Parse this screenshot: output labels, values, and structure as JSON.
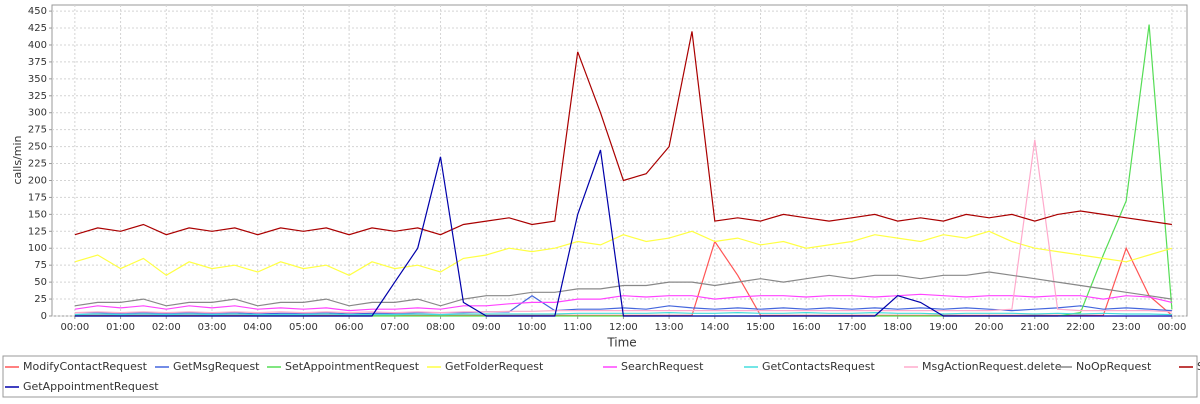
{
  "chart_data": {
    "type": "line",
    "ylabel": "calls/min",
    "xlabel": "Time",
    "xlim": [
      -0.5,
      24.33
    ],
    "ylim": [
      0,
      459
    ],
    "xticks": [
      {
        "value": 0,
        "label": "00:00"
      },
      {
        "value": 1,
        "label": "01:00"
      },
      {
        "value": 2,
        "label": "02:00"
      },
      {
        "value": 3,
        "label": "03:00"
      },
      {
        "value": 4,
        "label": "04:00"
      },
      {
        "value": 5,
        "label": "05:00"
      },
      {
        "value": 6,
        "label": "06:00"
      },
      {
        "value": 7,
        "label": "07:00"
      },
      {
        "value": 8,
        "label": "08:00"
      },
      {
        "value": 9,
        "label": "09:00"
      },
      {
        "value": 10,
        "label": "10:00"
      },
      {
        "value": 11,
        "label": "11:00"
      },
      {
        "value": 12,
        "label": "12:00"
      },
      {
        "value": 13,
        "label": "13:00"
      },
      {
        "value": 14,
        "label": "14:00"
      },
      {
        "value": 15,
        "label": "15:00"
      },
      {
        "value": 16,
        "label": "16:00"
      },
      {
        "value": 17,
        "label": "17:00"
      },
      {
        "value": 18,
        "label": "18:00"
      },
      {
        "value": 19,
        "label": "19:00"
      },
      {
        "value": 20,
        "label": "20:00"
      },
      {
        "value": 21,
        "label": "21:00"
      },
      {
        "value": 22,
        "label": "22:00"
      },
      {
        "value": 23,
        "label": "23:00"
      },
      {
        "value": 24,
        "label": "00:00"
      }
    ],
    "yticks": [
      0,
      25,
      50,
      75,
      100,
      125,
      150,
      175,
      200,
      225,
      250,
      275,
      300,
      325,
      350,
      375,
      400,
      425,
      450
    ],
    "grid": true,
    "x": [
      0,
      0.5,
      1,
      1.5,
      2,
      2.5,
      3,
      3.5,
      4,
      4.5,
      5,
      5.5,
      6,
      6.5,
      7,
      7.5,
      8,
      8.5,
      9,
      9.5,
      10,
      10.5,
      11,
      11.5,
      12,
      12.5,
      13,
      13.5,
      14,
      14.5,
      15,
      15.5,
      16,
      16.5,
      17,
      17.5,
      18,
      18.5,
      19,
      19.5,
      20,
      20.5,
      21,
      21.5,
      22,
      22.5,
      23,
      23.5,
      24
    ],
    "series": [
      {
        "name": "ModifyContactRequest",
        "color": "#ff5555",
        "values": [
          1,
          1,
          1,
          1,
          1,
          1,
          1,
          1,
          1,
          1,
          1,
          1,
          1,
          1,
          1,
          1,
          1,
          1,
          1,
          1,
          1,
          1,
          1,
          1,
          1,
          1,
          1,
          1,
          110,
          60,
          1,
          1,
          1,
          1,
          1,
          1,
          1,
          1,
          1,
          1,
          1,
          1,
          1,
          1,
          1,
          1,
          100,
          30,
          1
        ]
      },
      {
        "name": "GetMsgRequest",
        "color": "#4466dd",
        "values": [
          5,
          5,
          4,
          5,
          4,
          5,
          4,
          5,
          3,
          4,
          4,
          5,
          3,
          4,
          4,
          5,
          5,
          5,
          6,
          6,
          30,
          8,
          10,
          10,
          12,
          10,
          15,
          12,
          10,
          12,
          10,
          12,
          10,
          12,
          10,
          12,
          10,
          12,
          10,
          12,
          10,
          8,
          10,
          12,
          15,
          10,
          12,
          10,
          8
        ]
      },
      {
        "name": "SetAppointmentRequest",
        "color": "#55dd55",
        "values": [
          0,
          0,
          0,
          0,
          0,
          0,
          0,
          0,
          0,
          0,
          0,
          0,
          0,
          0,
          0,
          0,
          0,
          0,
          0,
          0,
          0,
          0,
          0,
          0,
          0,
          0,
          0,
          0,
          0,
          0,
          0,
          0,
          0,
          0,
          0,
          0,
          0,
          0,
          0,
          0,
          0,
          0,
          0,
          0,
          5,
          90,
          170,
          430,
          10
        ]
      },
      {
        "name": "GetFolderRequest",
        "color": "#ffff44",
        "values": [
          80,
          90,
          70,
          85,
          60,
          80,
          70,
          75,
          65,
          80,
          70,
          75,
          60,
          80,
          70,
          75,
          65,
          85,
          90,
          100,
          95,
          100,
          110,
          105,
          120,
          110,
          115,
          125,
          110,
          115,
          105,
          110,
          100,
          105,
          110,
          120,
          115,
          110,
          120,
          115,
          125,
          110,
          100,
          95,
          90,
          85,
          80,
          90,
          100
        ]
      },
      {
        "name": "SearchRequest",
        "color": "#ff44ff",
        "values": [
          10,
          15,
          12,
          15,
          10,
          15,
          12,
          15,
          10,
          12,
          10,
          12,
          8,
          10,
          10,
          12,
          10,
          15,
          15,
          18,
          20,
          20,
          25,
          25,
          30,
          28,
          30,
          30,
          25,
          28,
          30,
          30,
          28,
          30,
          30,
          28,
          30,
          32,
          30,
          28,
          30,
          30,
          28,
          30,
          30,
          25,
          30,
          28,
          20
        ]
      },
      {
        "name": "GetContactsRequest",
        "color": "#44dddd",
        "values": [
          2,
          3,
          2,
          3,
          2,
          3,
          2,
          3,
          2,
          2,
          2,
          3,
          2,
          2,
          2,
          3,
          2,
          3,
          3,
          3,
          3,
          3,
          4,
          4,
          4,
          4,
          5,
          4,
          4,
          5,
          4,
          4,
          5,
          4,
          4,
          5,
          4,
          4,
          3,
          4,
          4,
          4,
          3,
          4,
          3,
          4,
          3,
          3,
          2
        ]
      },
      {
        "name": "MsgActionRequest.delete",
        "color": "#ffaacc",
        "values": [
          5,
          6,
          5,
          6,
          5,
          6,
          5,
          6,
          5,
          6,
          5,
          6,
          5,
          6,
          5,
          6,
          5,
          6,
          6,
          7,
          7,
          8,
          8,
          8,
          8,
          8,
          8,
          8,
          8,
          8,
          8,
          8,
          8,
          8,
          8,
          8,
          8,
          8,
          8,
          8,
          8,
          10,
          260,
          10,
          8,
          8,
          8,
          8,
          6
        ]
      },
      {
        "name": "NoOpRequest",
        "color": "#888888",
        "values": [
          15,
          20,
          20,
          25,
          15,
          20,
          20,
          25,
          15,
          20,
          20,
          25,
          15,
          20,
          20,
          25,
          15,
          25,
          30,
          30,
          35,
          35,
          40,
          40,
          45,
          45,
          50,
          50,
          45,
          50,
          55,
          50,
          55,
          60,
          55,
          60,
          60,
          55,
          60,
          60,
          65,
          60,
          55,
          50,
          45,
          40,
          35,
          30,
          25
        ]
      },
      {
        "name": "SyncRequest",
        "color": "#aa0000",
        "values": [
          120,
          130,
          125,
          135,
          120,
          130,
          125,
          130,
          120,
          130,
          125,
          130,
          120,
          130,
          125,
          130,
          120,
          135,
          140,
          145,
          135,
          140,
          390,
          300,
          200,
          210,
          250,
          420,
          140,
          145,
          140,
          150,
          145,
          140,
          145,
          150,
          140,
          145,
          140,
          150,
          145,
          150,
          140,
          150,
          155,
          150,
          145,
          140,
          135
        ]
      },
      {
        "name": "GetAppointmentRequest",
        "color": "#0000aa",
        "values": [
          0,
          0,
          0,
          0,
          0,
          0,
          0,
          0,
          0,
          0,
          0,
          0,
          0,
          0,
          50,
          100,
          235,
          20,
          0,
          0,
          0,
          0,
          150,
          245,
          0,
          0,
          0,
          0,
          0,
          0,
          0,
          0,
          0,
          0,
          0,
          0,
          30,
          20,
          0,
          0,
          0,
          0,
          0,
          0,
          0,
          0,
          0,
          0,
          0
        ]
      }
    ]
  }
}
